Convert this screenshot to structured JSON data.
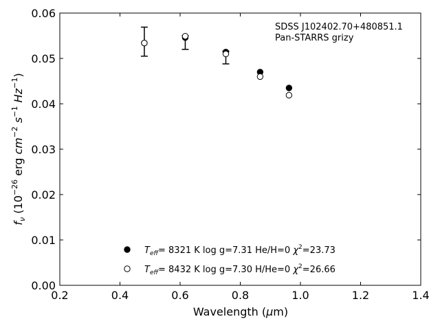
{
  "chart_data": {
    "type": "scatter",
    "title": "",
    "xlabel_prefix": "Wavelength (",
    "xlabel_mu": "μ",
    "xlabel_suffix": "m)",
    "ylabel": "f_ν (10^-26 erg cm^-2 s^-1 Hz^-1)",
    "xlim": [
      0.2,
      1.4
    ],
    "ylim": [
      0.0,
      0.06
    ],
    "xticks": [
      0.2,
      0.4,
      0.6,
      0.8,
      1.0,
      1.2,
      1.4
    ],
    "xtick_labels": [
      "0.2",
      "0.4",
      "0.6",
      "0.8",
      "1.0",
      "1.2",
      "1.4"
    ],
    "yticks": [
      0.0,
      0.01,
      0.02,
      0.03,
      0.04,
      0.05,
      0.06
    ],
    "ytick_labels": [
      "0.00",
      "0.01",
      "0.02",
      "0.03",
      "0.04",
      "0.05",
      "0.06"
    ],
    "annotation_lines": [
      "SDSS J102402.70+480851.1",
      "Pan-STARRS grizy"
    ],
    "observed": {
      "x": [
        0.481,
        0.617,
        0.752
      ],
      "y": [
        0.0537,
        0.0535,
        0.0502
      ],
      "yerr": [
        0.0032,
        0.0015,
        0.0014
      ]
    },
    "series": [
      {
        "marker": "filled-circle",
        "x": [
          0.481,
          0.617,
          0.752,
          0.866,
          0.962
        ],
        "y": [
          0.0534,
          0.0546,
          0.0514,
          0.047,
          0.0435
        ],
        "legend": {
          "teff": "8321 K",
          "logg": "log g=7.31",
          "comp": "He/H=0",
          "chi": "=23.73"
        }
      },
      {
        "marker": "open-circle",
        "x": [
          0.481,
          0.617,
          0.752,
          0.866,
          0.962
        ],
        "y": [
          0.0534,
          0.0549,
          0.051,
          0.046,
          0.0419
        ],
        "legend": {
          "teff": "8432 K",
          "logg": "log g=7.30",
          "comp": "H/He=0",
          "chi": "=26.66"
        }
      }
    ],
    "legend_position": "lower-center",
    "grid": false,
    "colors": {
      "marker": "#000000",
      "axes": "#000000",
      "background": "#ffffff"
    }
  }
}
